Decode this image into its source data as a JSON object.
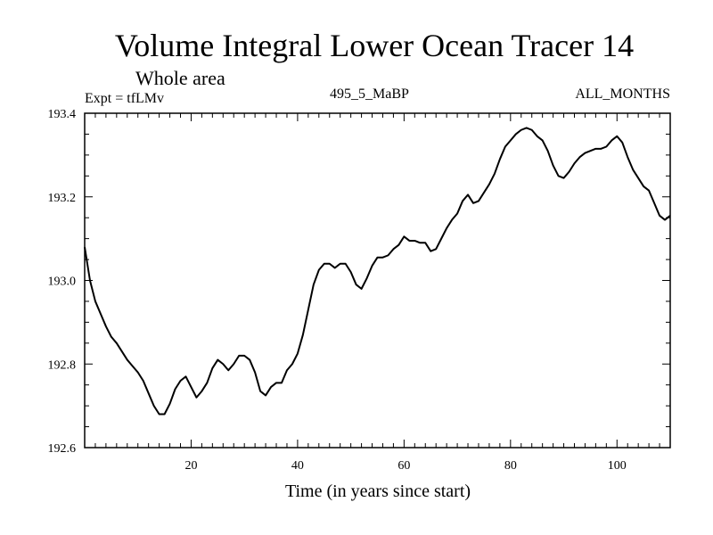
{
  "chart_data": {
    "type": "line",
    "title": "Volume Integral Lower Ocean Tracer 14",
    "subtitle": "Whole area",
    "expt_label": "Expt = tfLMv",
    "run_label": "495_5_MaBP",
    "period_label": "ALL_MONTHS",
    "xlabel": "Time (in years since start)",
    "ylabel": "",
    "xlim": [
      0,
      110
    ],
    "ylim": [
      192.6,
      193.4
    ],
    "x_ticks": [
      20,
      40,
      60,
      80,
      100
    ],
    "x_tick_labels": [
      "20",
      "40",
      "60",
      "80",
      "100"
    ],
    "y_ticks": [
      192.6,
      192.8,
      193.0,
      193.2,
      193.4
    ],
    "y_tick_labels": [
      "192.6",
      "192.8",
      "193.0",
      "193.2",
      "193.4"
    ],
    "series": [
      {
        "name": "Volume Integral Lower Ocean Tracer 14",
        "x": [
          0,
          1,
          2,
          3,
          4,
          5,
          6,
          7,
          8,
          9,
          10,
          11,
          12,
          13,
          14,
          15,
          16,
          17,
          18,
          19,
          20,
          21,
          22,
          23,
          24,
          25,
          26,
          27,
          28,
          29,
          30,
          31,
          32,
          33,
          34,
          35,
          36,
          37,
          38,
          39,
          40,
          41,
          42,
          43,
          44,
          45,
          46,
          47,
          48,
          49,
          50,
          51,
          52,
          53,
          54,
          55,
          56,
          57,
          58,
          59,
          60,
          61,
          62,
          63,
          64,
          65,
          66,
          67,
          68,
          69,
          70,
          71,
          72,
          73,
          74,
          75,
          76,
          77,
          78,
          79,
          80,
          81,
          82,
          83,
          84,
          85,
          86,
          87,
          88,
          89,
          90,
          91,
          92,
          93,
          94,
          95,
          96,
          97,
          98,
          99,
          100,
          101,
          102,
          103,
          104,
          105,
          106,
          107,
          108,
          109,
          110
        ],
        "values": [
          193.08,
          193.0,
          192.95,
          192.92,
          192.89,
          192.865,
          192.85,
          192.83,
          192.81,
          192.795,
          192.78,
          192.76,
          192.73,
          192.7,
          192.68,
          192.68,
          192.705,
          192.74,
          192.76,
          192.77,
          192.745,
          192.72,
          192.735,
          192.755,
          192.79,
          192.81,
          192.8,
          192.785,
          192.8,
          192.82,
          192.82,
          192.81,
          192.78,
          192.735,
          192.725,
          192.745,
          192.755,
          192.755,
          192.785,
          192.8,
          192.825,
          192.87,
          192.93,
          192.99,
          193.025,
          193.04,
          193.04,
          193.03,
          193.04,
          193.04,
          193.02,
          192.99,
          192.98,
          193.005,
          193.035,
          193.055,
          193.055,
          193.06,
          193.075,
          193.085,
          193.105,
          193.095,
          193.095,
          193.09,
          193.09,
          193.07,
          193.075,
          193.1,
          193.125,
          193.145,
          193.16,
          193.19,
          193.205,
          193.185,
          193.19,
          193.21,
          193.23,
          193.255,
          193.29,
          193.32,
          193.335,
          193.35,
          193.36,
          193.365,
          193.36,
          193.345,
          193.335,
          193.31,
          193.275,
          193.25,
          193.245,
          193.26,
          193.28,
          193.295,
          193.305,
          193.31,
          193.315,
          193.315,
          193.32,
          193.335,
          193.345,
          193.33,
          193.295,
          193.265,
          193.245,
          193.225,
          193.215,
          193.185,
          193.155,
          193.145,
          193.155
        ]
      }
    ]
  }
}
